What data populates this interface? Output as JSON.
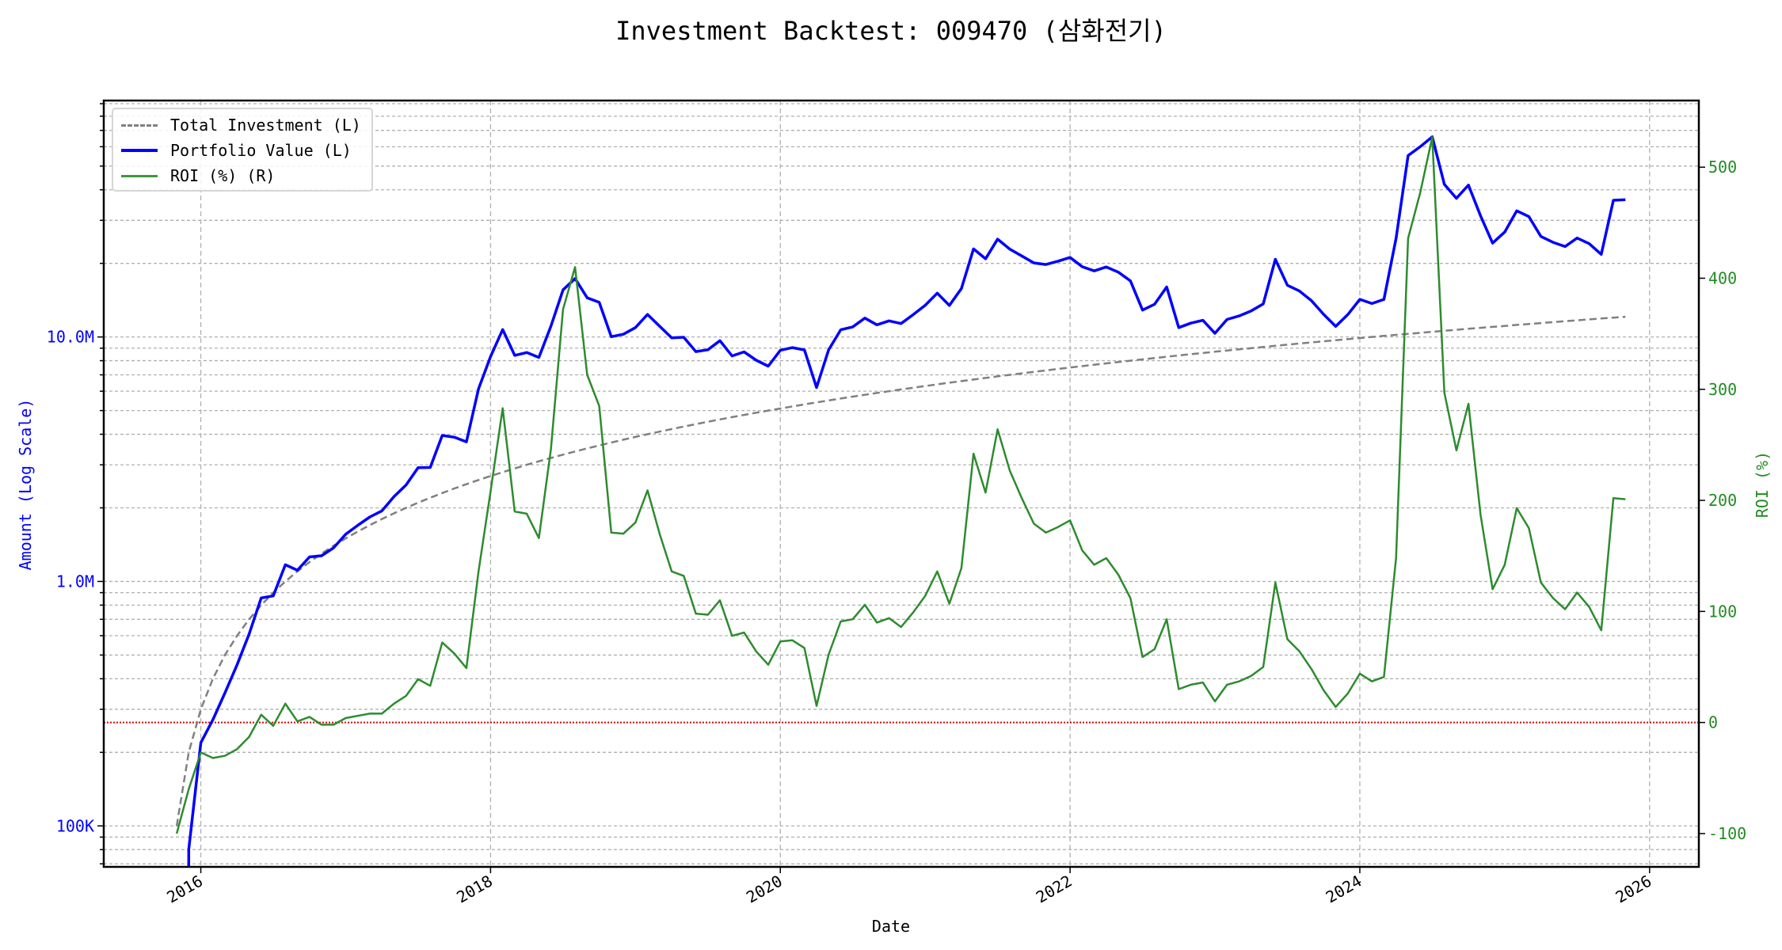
{
  "chart_data": {
    "type": "line",
    "title": "Investment Backtest: 009470 (삼화전기)",
    "xlabel": "Date",
    "ylabel_left": "Amount (Log Scale)",
    "ylabel_right": "ROI (%)",
    "x_start": "2015-11",
    "x_frequency": "monthly",
    "x_ticks": [
      "2016",
      "2018",
      "2020",
      "2022",
      "2024",
      "2026"
    ],
    "xlim": [
      2015.33,
      2026.34
    ],
    "y_left_scale": "log",
    "y_left_lim": [
      68000,
      92700000
    ],
    "y_left_ticks": [
      {
        "value": 100000,
        "label": "100K"
      },
      {
        "value": 1000000,
        "label": "1.0M"
      },
      {
        "value": 10000000,
        "label": "10.0M"
      }
    ],
    "y_right_lim": [
      -130,
      560
    ],
    "y_right_ticks": [
      {
        "value": -100,
        "label": "-100"
      },
      {
        "value": 0,
        "label": "0"
      },
      {
        "value": 100,
        "label": "100"
      },
      {
        "value": 200,
        "label": "200"
      },
      {
        "value": 300,
        "label": "300"
      },
      {
        "value": 400,
        "label": "400"
      },
      {
        "value": 500,
        "label": "500"
      }
    ],
    "grid": true,
    "legend_position": "top-left",
    "reference_line": {
      "axis": "right",
      "value": 0,
      "color": "#dd0000",
      "style": "dotted"
    },
    "series": [
      {
        "name": "Total Investment (L)",
        "axis": "left",
        "color": "#808080",
        "style": "dashed",
        "monthly_contribution": 100000
      },
      {
        "name": "Portfolio Value (L)",
        "axis": "left",
        "color": "#0000ff",
        "style": "solid",
        "derived": "total_investment * (1 + roi/100)"
      },
      {
        "name": "ROI (%) (R)",
        "axis": "right",
        "color": "#228b22",
        "style": "solid",
        "values": [
          -100,
          -60,
          -27,
          -32,
          -30,
          -24,
          -13,
          7,
          -3,
          17,
          1,
          5,
          -2,
          -2,
          4,
          6,
          8,
          8,
          17,
          24,
          39,
          33,
          72,
          62,
          49,
          136,
          208,
          283,
          190,
          188,
          166,
          246,
          372,
          410,
          313,
          285,
          171,
          170,
          180,
          209,
          170,
          136,
          132,
          98,
          97,
          110,
          78,
          81,
          64,
          52,
          73,
          74,
          67,
          15,
          61,
          91,
          93,
          106,
          90,
          94,
          86,
          99,
          114,
          136,
          107,
          139,
          242,
          207,
          264,
          227,
          202,
          179,
          171,
          176,
          182,
          155,
          142,
          148,
          133,
          112,
          59,
          66,
          93,
          30,
          34,
          36,
          19,
          34,
          37,
          42,
          50,
          126,
          75,
          64,
          48,
          29,
          14,
          26,
          44,
          37,
          41,
          148,
          436,
          477,
          527,
          297,
          245,
          287,
          187,
          120,
          142,
          193,
          175,
          126,
          112,
          102,
          117,
          104,
          83,
          202,
          201
        ]
      }
    ]
  }
}
